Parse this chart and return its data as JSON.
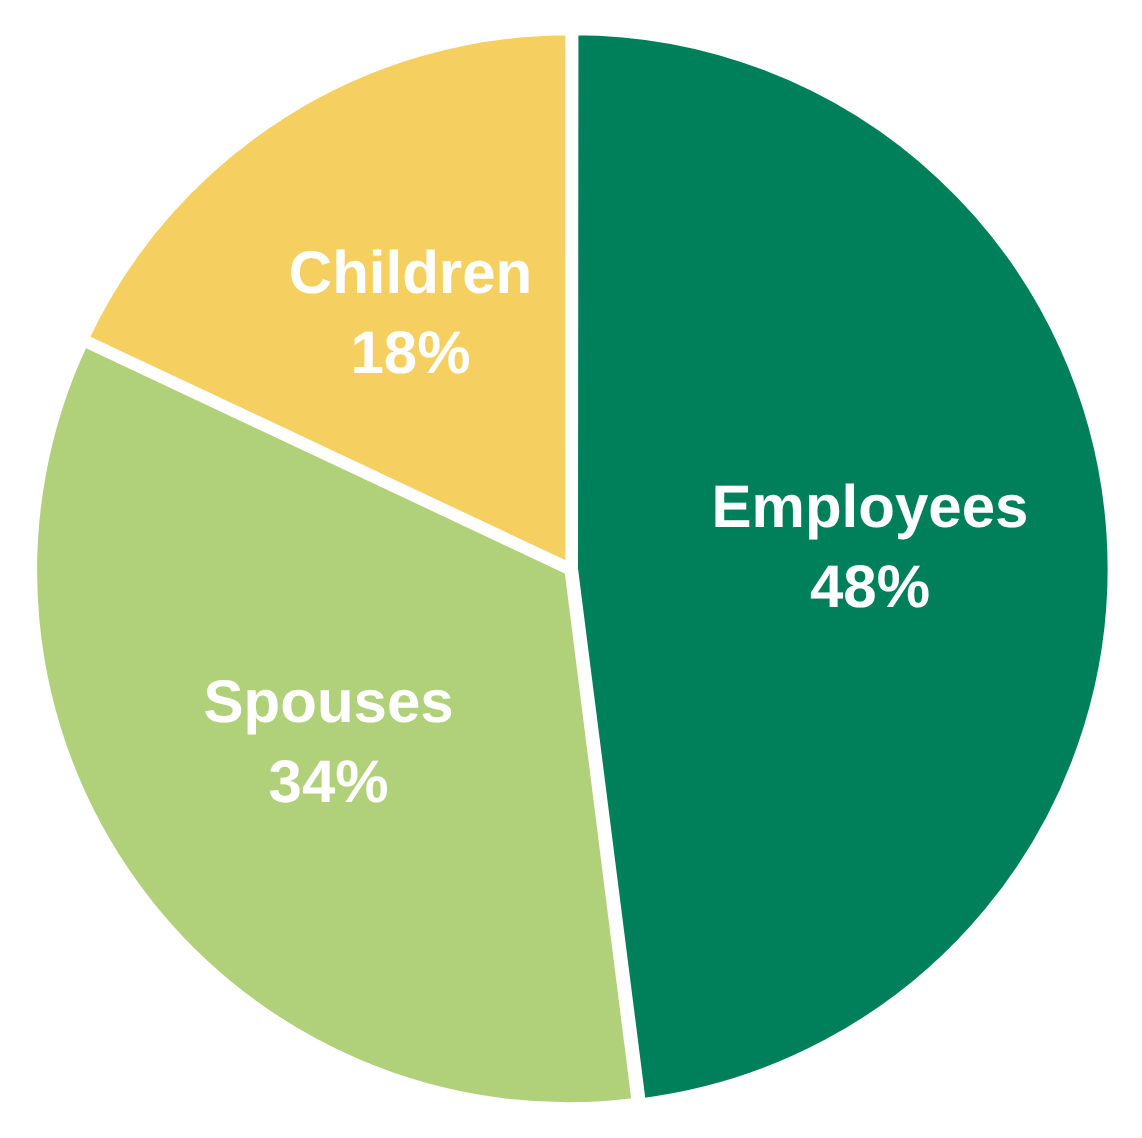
{
  "chart_data": {
    "type": "pie",
    "categories": [
      "Employees",
      "Spouses",
      "Children"
    ],
    "values": [
      48,
      34,
      18
    ],
    "colors": [
      "#00805a",
      "#b0d07a",
      "#f5d060"
    ],
    "value_labels": [
      "48%",
      "34%",
      "18%"
    ],
    "legend": false
  }
}
